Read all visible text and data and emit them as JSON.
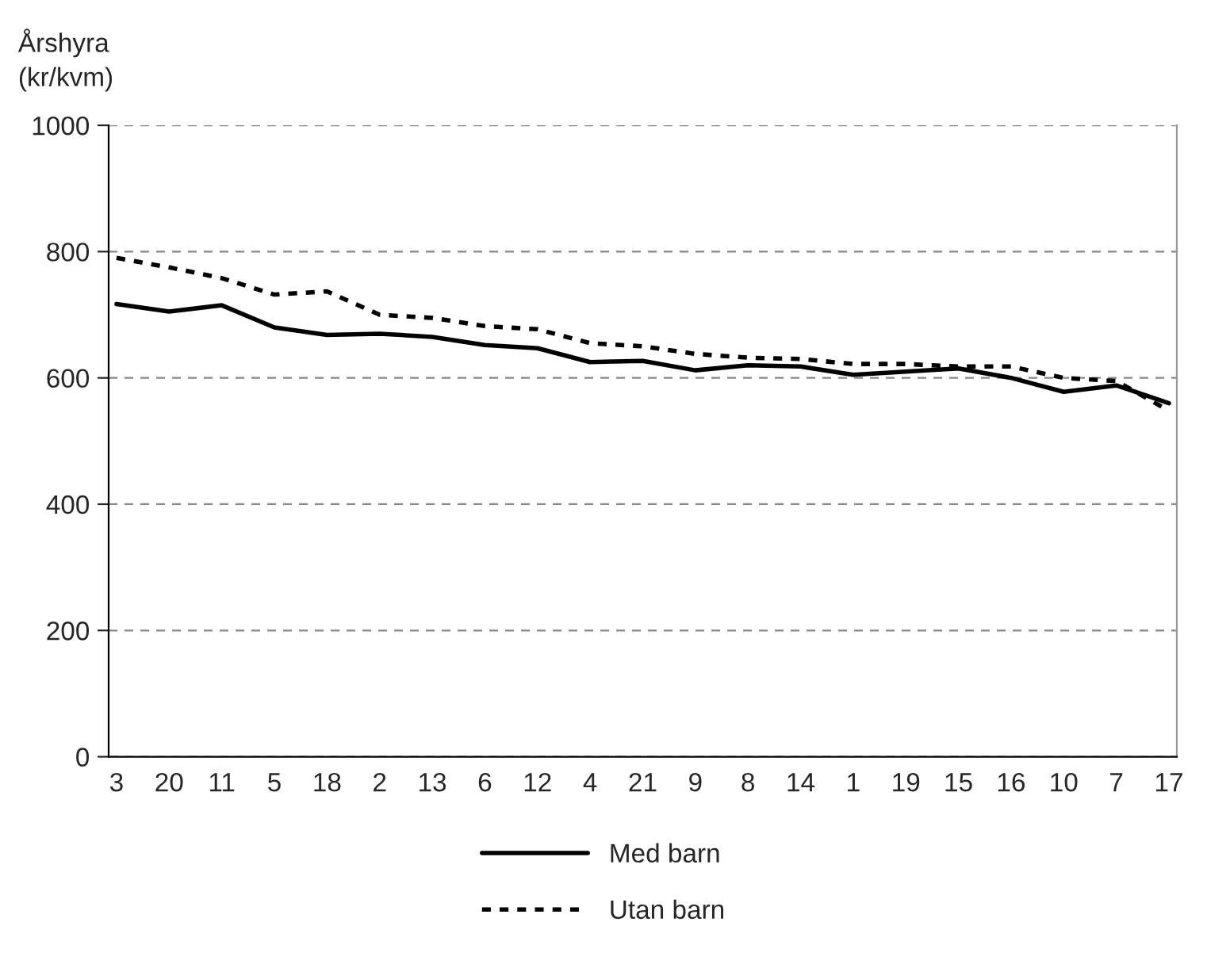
{
  "chart_data": {
    "type": "line",
    "ylabel": "Årshyra\n(kr/kvm)",
    "categories": [
      "3",
      "20",
      "11",
      "5",
      "18",
      "2",
      "13",
      "6",
      "12",
      "4",
      "21",
      "9",
      "8",
      "14",
      "1",
      "19",
      "15",
      "16",
      "10",
      "7",
      "17"
    ],
    "series": [
      {
        "name": "Med barn",
        "color": "#000000",
        "line_style": "solid",
        "values": [
          717,
          705,
          715,
          680,
          668,
          670,
          665,
          652,
          647,
          625,
          627,
          612,
          620,
          618,
          605,
          610,
          615,
          600,
          578,
          588,
          560
        ]
      },
      {
        "name": "Utan barn",
        "color": "#000000",
        "line_style": "dotted",
        "values": [
          790,
          775,
          758,
          732,
          737,
          700,
          695,
          682,
          677,
          655,
          650,
          638,
          632,
          630,
          622,
          622,
          618,
          618,
          600,
          595,
          548
        ]
      }
    ],
    "ylim": [
      0,
      1000
    ],
    "yticks": [
      0,
      200,
      400,
      600,
      800,
      1000
    ],
    "grid": "y",
    "legend": "bottom",
    "marker": "none"
  }
}
